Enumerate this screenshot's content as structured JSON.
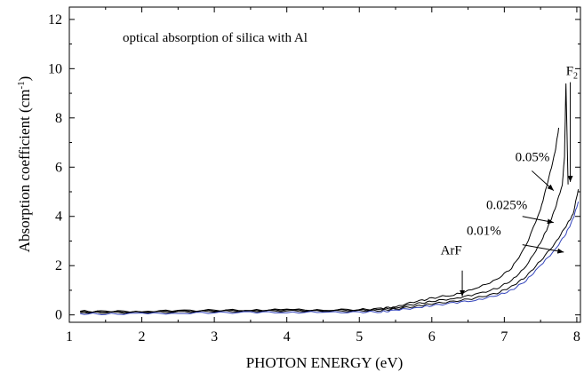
{
  "chart_data": {
    "type": "line",
    "title": "",
    "inset_label": "optical absorption of silica with Al",
    "xlabel": "PHOTON ENERGY (eV)",
    "ylabel": "Absorption coefficient (cm⁻¹)",
    "ylabel_main": "Absorption coefficient (cm",
    "ylabel_sup": "-1",
    "ylabel_close": ")",
    "xlim": [
      1,
      8.05
    ],
    "ylim": [
      -0.3,
      12.5
    ],
    "xticks": [
      1,
      2,
      3,
      4,
      5,
      6,
      7,
      8
    ],
    "xtick_labels": [
      "1",
      "2",
      "3",
      "4",
      "5",
      "6",
      "7",
      "8"
    ],
    "yticks": [
      0,
      2,
      4,
      6,
      8,
      10,
      12
    ],
    "ytick_labels": [
      "0",
      "2",
      "4",
      "6",
      "8",
      "10",
      "12"
    ],
    "grid": false,
    "series": [
      {
        "label": "0.05%",
        "color": "#000000",
        "x": [
          1.15,
          1.5,
          2.0,
          2.5,
          3.0,
          3.5,
          4.0,
          4.5,
          5.0,
          5.3,
          5.5,
          5.8,
          6.0,
          6.3,
          6.6,
          6.9,
          7.1,
          7.3,
          7.5,
          7.6,
          7.7,
          7.75
        ],
        "y": [
          0.15,
          0.14,
          0.15,
          0.17,
          0.19,
          0.2,
          0.21,
          0.2,
          0.22,
          0.25,
          0.35,
          0.55,
          0.68,
          0.82,
          1.05,
          1.45,
          1.9,
          2.8,
          4.3,
          5.4,
          6.6,
          7.6
        ]
      },
      {
        "label": "0.025%",
        "color": "#000000",
        "x": [
          1.15,
          1.5,
          2.0,
          2.5,
          3.0,
          3.5,
          4.0,
          4.5,
          5.0,
          5.3,
          5.5,
          5.8,
          6.0,
          6.3,
          6.6,
          6.9,
          7.1,
          7.3,
          7.5,
          7.6,
          7.7,
          7.8,
          7.83,
          7.85,
          7.88
        ],
        "y": [
          0.13,
          0.12,
          0.13,
          0.15,
          0.17,
          0.18,
          0.19,
          0.18,
          0.2,
          0.22,
          0.3,
          0.45,
          0.55,
          0.67,
          0.82,
          1.08,
          1.4,
          1.95,
          2.95,
          3.55,
          4.3,
          5.3,
          6.4,
          9.4,
          5.3
        ]
      },
      {
        "label": "0.01%",
        "color": "#000000",
        "x": [
          1.15,
          1.5,
          2.0,
          2.5,
          3.0,
          3.5,
          4.0,
          4.5,
          5.0,
          5.3,
          5.5,
          5.8,
          6.0,
          6.3,
          6.6,
          6.9,
          7.1,
          7.3,
          7.5,
          7.7,
          7.85,
          7.95,
          8.02
        ],
        "y": [
          0.1,
          0.09,
          0.1,
          0.12,
          0.14,
          0.15,
          0.16,
          0.15,
          0.16,
          0.18,
          0.24,
          0.36,
          0.45,
          0.55,
          0.68,
          0.88,
          1.15,
          1.55,
          2.2,
          2.9,
          3.6,
          4.1,
          5.1
        ]
      },
      {
        "label": "",
        "color": "#3344bb",
        "x": [
          1.15,
          1.5,
          2.0,
          2.5,
          3.0,
          3.5,
          4.0,
          4.5,
          5.0,
          5.3,
          5.5,
          5.8,
          6.0,
          6.3,
          6.6,
          6.9,
          7.1,
          7.3,
          7.5,
          7.7,
          7.85,
          7.95,
          8.02
        ],
        "y": [
          0.05,
          0.04,
          0.05,
          0.07,
          0.09,
          0.1,
          0.11,
          0.1,
          0.11,
          0.13,
          0.18,
          0.3,
          0.38,
          0.48,
          0.6,
          0.78,
          1.0,
          1.4,
          2.0,
          2.65,
          3.3,
          3.9,
          4.6
        ]
      }
    ],
    "annotations": [
      {
        "text": "ArF",
        "text_x": 6.12,
        "text_y": 2.45,
        "arrow_from": [
          6.42,
          1.8
        ],
        "arrow_to": [
          6.42,
          0.75
        ]
      },
      {
        "text": "0.05%",
        "text_x": 7.15,
        "text_y": 6.25,
        "arrow_from": [
          7.38,
          5.85
        ],
        "arrow_to": [
          7.68,
          5.05
        ]
      },
      {
        "text": "0.025%",
        "text_x": 6.75,
        "text_y": 4.3,
        "arrow_from": [
          7.25,
          4.0
        ],
        "arrow_to": [
          7.68,
          3.75
        ]
      },
      {
        "text": "0.01%",
        "text_x": 6.48,
        "text_y": 3.25,
        "arrow_from": [
          7.25,
          2.85
        ],
        "arrow_to": [
          7.82,
          2.55
        ]
      },
      {
        "text": "F",
        "sub": "2",
        "text_x": 7.85,
        "text_y": 9.75,
        "arrow_from": [
          7.91,
          9.45
        ],
        "arrow_to": [
          7.91,
          5.4
        ]
      }
    ]
  }
}
